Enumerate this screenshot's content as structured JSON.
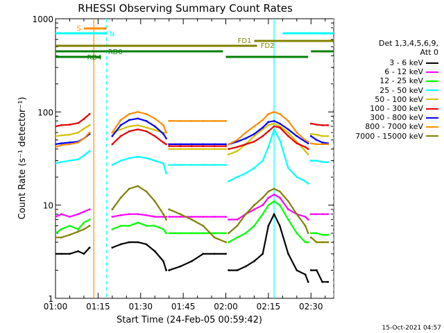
{
  "chart_data": {
    "type": "line",
    "title": "RHESSI Observing Summary Count Rates",
    "xlabel": "Start Time (24-Feb-05 00:59:42)",
    "ylabel": "Count Rate (s⁻¹ detector⁻¹)",
    "yscale": "log",
    "ylim": [
      1,
      1000
    ],
    "xlim_minutes": [
      0,
      98
    ],
    "x_ticks": [
      {
        "label": "01:00",
        "minute": 0
      },
      {
        "label": "01:15",
        "minute": 15
      },
      {
        "label": "01:30",
        "minute": 30
      },
      {
        "label": "01:45",
        "minute": 45
      },
      {
        "label": "02:00",
        "minute": 60
      },
      {
        "label": "02:15",
        "minute": 75
      },
      {
        "label": "02:30",
        "minute": 90
      }
    ],
    "y_ticks": [
      {
        "label": "1",
        "value": 1
      },
      {
        "label": "10",
        "value": 10
      },
      {
        "label": "100",
        "value": 100
      },
      {
        "label": "1000",
        "value": 1000
      }
    ],
    "legend_title": [
      "Det 1,3,4,5,6,9,",
      "Att 0"
    ],
    "legend_position": "right",
    "series": [
      {
        "name": "3 - 6 keV",
        "color": "#000000",
        "key": "e3_6"
      },
      {
        "name": "6 - 12 keV",
        "color": "#ff00ff",
        "key": "e6_12"
      },
      {
        "name": "12 - 25 keV",
        "color": "#00ff00",
        "key": "e12_25"
      },
      {
        "name": "25 - 50 keV",
        "color": "#00ffff",
        "key": "e25_50"
      },
      {
        "name": "50 - 100 keV",
        "color": "#d4c200",
        "key": "e50_100"
      },
      {
        "name": "100 - 300 keV",
        "color": "#e80000",
        "key": "e100_300"
      },
      {
        "name": "300 - 800 keV",
        "color": "#0000ff",
        "key": "e300_800"
      },
      {
        "name": "800 - 7000 keV",
        "color": "#ff8c00",
        "key": "e800_7000"
      },
      {
        "name": "7000 - 15000 keV",
        "color": "#808000",
        "key": "e7000_15000"
      }
    ],
    "data_segments": [
      {
        "t": [
          0,
          2,
          5,
          8,
          10,
          12
        ],
        "e800_7000": [
          42,
          44,
          45,
          47,
          52,
          60
        ],
        "e300_800": [
          45,
          46,
          47,
          48,
          52,
          58
        ],
        "e50_100": [
          55,
          56,
          57,
          60,
          66,
          72
        ],
        "e100_300": [
          70,
          72,
          73,
          76,
          84,
          95
        ],
        "e25_50": [
          28,
          29,
          30,
          31,
          34,
          38
        ],
        "e7000_15000": [
          4.5,
          4.5,
          4.8,
          5.2,
          5.5,
          6
        ],
        "e12_25": [
          5,
          5.5,
          6,
          5.5,
          6.5,
          7
        ],
        "e6_12": [
          7.5,
          8,
          7.5,
          8,
          8.5,
          9
        ],
        "e3_6": [
          3,
          3,
          3,
          3.2,
          3,
          3.5
        ]
      },
      {
        "t": [
          20,
          23,
          26,
          29,
          32,
          35,
          38,
          39
        ],
        "e800_7000": [
          60,
          82,
          95,
          100,
          95,
          85,
          72,
          60
        ],
        "e300_800": [
          55,
          72,
          82,
          85,
          80,
          70,
          58,
          52
        ],
        "e50_100": [
          60,
          65,
          70,
          72,
          68,
          64,
          60,
          60
        ],
        "e100_300": [
          45,
          55,
          62,
          65,
          62,
          55,
          47,
          45
        ],
        "e25_50": [
          27,
          30,
          32,
          33,
          32,
          30,
          28,
          22
        ],
        "e7000_15000": [
          9,
          12,
          15,
          16,
          14,
          11,
          8,
          7
        ],
        "e12_25": [
          5.5,
          6,
          6,
          6.5,
          6,
          6,
          5.5,
          5
        ],
        "e6_12": [
          7.5,
          7.8,
          8,
          8,
          7.8,
          7.5,
          7.5,
          7.5
        ],
        "e3_6": [
          3.5,
          3.8,
          4,
          4,
          3.8,
          3.2,
          2.5,
          2
        ]
      },
      {
        "t": [
          40,
          44,
          48,
          52,
          56,
          60
        ],
        "e800_7000": [
          80,
          80,
          80,
          80,
          80,
          80
        ],
        "e300_800": [
          45,
          45,
          45,
          45,
          45,
          45
        ],
        "e50_100": [
          40,
          40,
          40,
          40,
          40,
          40
        ],
        "e100_300": [
          43,
          43,
          43,
          43,
          43,
          43
        ],
        "e25_50": [
          27,
          27,
          27,
          27,
          27,
          27
        ],
        "e7000_15000": [
          9,
          8,
          7,
          6,
          4.5,
          4
        ],
        "e12_25": [
          5,
          5,
          5,
          5,
          5,
          5
        ],
        "e6_12": [
          7.5,
          7.5,
          7.5,
          7.5,
          7.5,
          7.5
        ],
        "e3_6": [
          2,
          2.2,
          2.5,
          3,
          3,
          3
        ]
      },
      {
        "t": [
          61,
          64,
          67,
          70,
          73,
          75,
          77,
          79,
          82,
          85,
          88,
          89
        ],
        "e800_7000": [
          45,
          50,
          60,
          70,
          82,
          95,
          100,
          95,
          80,
          60,
          50,
          48
        ],
        "e300_800": [
          45,
          48,
          52,
          58,
          68,
          78,
          80,
          75,
          65,
          55,
          48,
          46
        ],
        "e50_100": [
          35,
          38,
          45,
          55,
          65,
          72,
          75,
          70,
          60,
          48,
          38,
          35
        ],
        "e100_300": [
          40,
          42,
          45,
          48,
          55,
          62,
          70,
          68,
          55,
          46,
          42,
          40
        ],
        "e25_50": [
          18,
          20,
          22,
          25,
          30,
          42,
          65,
          50,
          25,
          20,
          18,
          17
        ],
        "e7000_15000": [
          5,
          6,
          8,
          10,
          12,
          14,
          15,
          14,
          11,
          8,
          6,
          5
        ],
        "e12_25": [
          4,
          4.5,
          5,
          6,
          8,
          10,
          11,
          10,
          7,
          5,
          4,
          4
        ],
        "e6_12": [
          7,
          7,
          8,
          9,
          10,
          12,
          13,
          12,
          9,
          8,
          7.5,
          7
        ],
        "e3_6": [
          2,
          2,
          2.2,
          2.5,
          3,
          6,
          8,
          6,
          3,
          2,
          1.8,
          1.5
        ]
      },
      {
        "t": [
          90,
          92,
          94,
          96
        ],
        "e800_7000": [
          46,
          45,
          45,
          45
        ],
        "e300_800": [
          55,
          50,
          47,
          46
        ],
        "e50_100": [
          58,
          57,
          55,
          55
        ],
        "e100_300": [
          75,
          73,
          72,
          72
        ],
        "e25_50": [
          30,
          30,
          29,
          29
        ],
        "e7000_15000": [
          4.5,
          4,
          4,
          4
        ],
        "e12_25": [
          5,
          5,
          4.8,
          4.8
        ],
        "e6_12": [
          8,
          8,
          8,
          8
        ],
        "e3_6": [
          2,
          2,
          1.5,
          1.5
        ]
      }
    ],
    "flags": [
      {
        "label": "S",
        "color": "#ff8c00",
        "x_start": 10,
        "x_end": 18
      },
      {
        "label": "N",
        "color": "#00ffff",
        "x_start": 0,
        "x_end": 18
      },
      {
        "label": "N",
        "color": "#00ffff",
        "x_start": 80,
        "x_end": 98,
        "show_label": false
      },
      {
        "label": "FD1",
        "color": "#808000",
        "x_start": 70,
        "x_end": 98
      },
      {
        "label": "FD2",
        "color": "#808000",
        "x_start": 0,
        "x_end": 71
      },
      {
        "label": "RD0",
        "color": "#007f00",
        "x_start": 0,
        "x_end": 41
      },
      {
        "label": "RD4",
        "color": "#007f00",
        "x_start": 0,
        "x_end": 16
      },
      {
        "label": "",
        "color": "#007f00",
        "x_start": 39,
        "x_end": 59
      },
      {
        "label": "",
        "color": "#007f00",
        "x_start": 60,
        "x_end": 89
      },
      {
        "label": "",
        "color": "#007f00",
        "x_start": 90,
        "x_end": 98
      }
    ],
    "vertical_lines": [
      {
        "minute": 13.5,
        "color": "#ff8c00",
        "style": "solid"
      },
      {
        "minute": 18,
        "color": "#00ffff",
        "style": "dashed"
      },
      {
        "minute": 77,
        "color": "#00ffff",
        "style": "solid"
      },
      {
        "minute": 98,
        "color": "#00ffff",
        "style": "dashed"
      }
    ]
  },
  "footer_date": "15-Oct-2021 04:57"
}
